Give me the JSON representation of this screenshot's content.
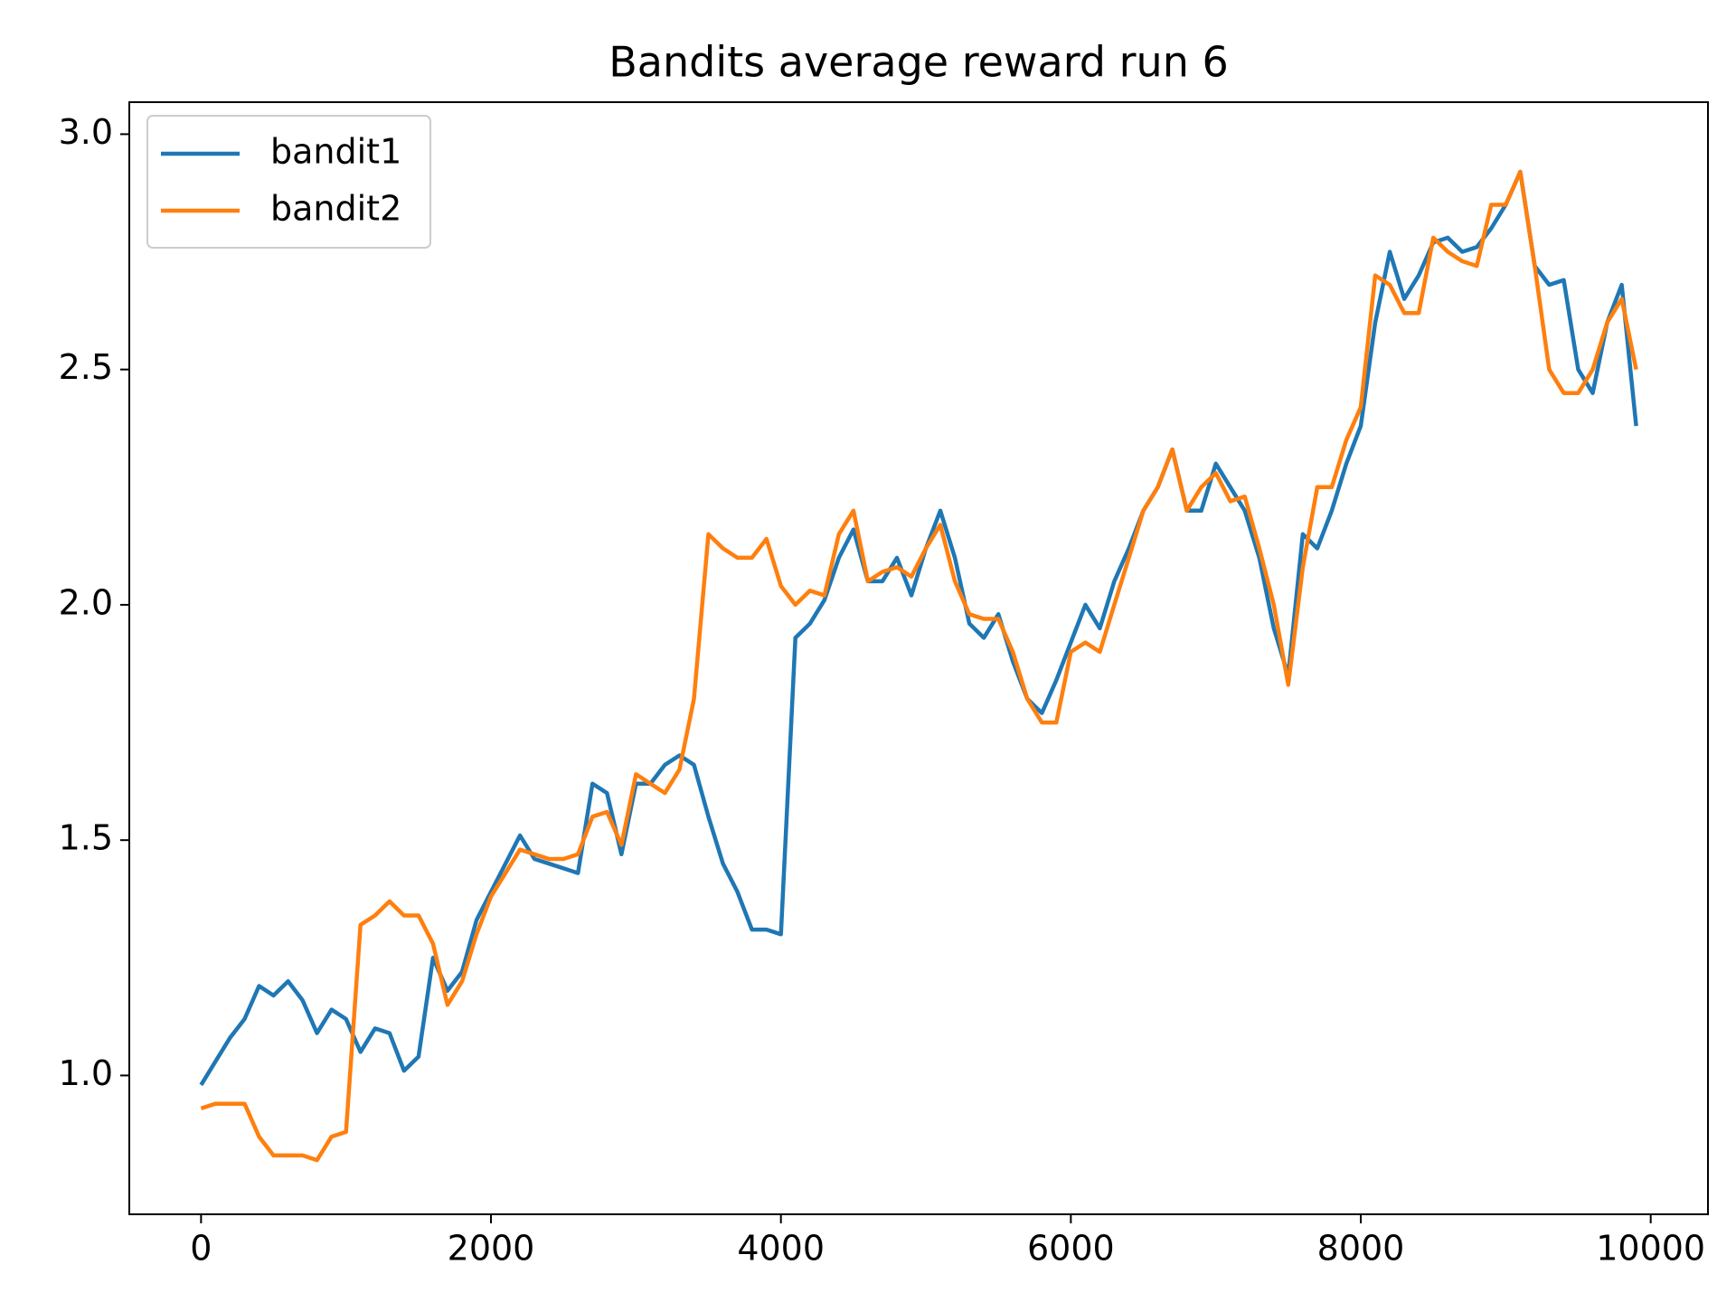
{
  "chart_data": {
    "type": "line",
    "title": "Bandits average reward run 6",
    "x": [
      0,
      100,
      200,
      300,
      400,
      500,
      600,
      700,
      800,
      900,
      1000,
      1100,
      1200,
      1300,
      1400,
      1500,
      1600,
      1700,
      1800,
      1900,
      2000,
      2100,
      2200,
      2300,
      2400,
      2500,
      2600,
      2700,
      2800,
      2900,
      3000,
      3100,
      3200,
      3300,
      3400,
      3500,
      3600,
      3700,
      3800,
      3900,
      4000,
      4100,
      4200,
      4300,
      4400,
      4500,
      4600,
      4700,
      4800,
      4900,
      5000,
      5100,
      5200,
      5300,
      5400,
      5500,
      5600,
      5700,
      5800,
      5900,
      6000,
      6100,
      6200,
      6300,
      6400,
      6500,
      6600,
      6700,
      6800,
      6900,
      7000,
      7100,
      7200,
      7300,
      7400,
      7500,
      7600,
      7700,
      7800,
      7900,
      8000,
      8100,
      8200,
      8300,
      8400,
      8500,
      8600,
      8700,
      8800,
      8900,
      9000,
      9100,
      9200,
      9300,
      9400,
      9500,
      9600,
      9700,
      9800,
      9900
    ],
    "series": [
      {
        "name": "bandit1",
        "color": "#1f77b4",
        "values": [
          0.98,
          1.03,
          1.08,
          1.12,
          1.19,
          1.17,
          1.2,
          1.16,
          1.09,
          1.14,
          1.12,
          1.05,
          1.1,
          1.09,
          1.01,
          1.04,
          1.25,
          1.18,
          1.22,
          1.33,
          1.39,
          1.45,
          1.51,
          1.46,
          1.45,
          1.44,
          1.43,
          1.62,
          1.6,
          1.47,
          1.62,
          1.62,
          1.66,
          1.68,
          1.66,
          1.55,
          1.45,
          1.39,
          1.31,
          1.31,
          1.3,
          1.93,
          1.96,
          2.01,
          2.1,
          2.16,
          2.05,
          2.05,
          2.1,
          2.02,
          2.12,
          2.2,
          2.1,
          1.96,
          1.93,
          1.98,
          1.88,
          1.8,
          1.77,
          1.84,
          1.92,
          2.0,
          1.95,
          2.05,
          2.12,
          2.2,
          2.25,
          2.33,
          2.2,
          2.2,
          2.3,
          2.25,
          2.2,
          2.1,
          1.95,
          1.85,
          2.15,
          2.12,
          2.2,
          2.3,
          2.38,
          2.6,
          2.75,
          2.65,
          2.7,
          2.77,
          2.78,
          2.75,
          2.76,
          2.8,
          2.85,
          2.92,
          2.72,
          2.68,
          2.69,
          2.5,
          2.45,
          2.6,
          2.68,
          2.38
        ]
      },
      {
        "name": "bandit2",
        "color": "#ff7f0e",
        "values": [
          0.93,
          0.94,
          0.94,
          0.94,
          0.87,
          0.83,
          0.83,
          0.83,
          0.82,
          0.87,
          0.88,
          1.32,
          1.34,
          1.37,
          1.34,
          1.34,
          1.28,
          1.15,
          1.2,
          1.3,
          1.38,
          1.43,
          1.48,
          1.47,
          1.46,
          1.46,
          1.47,
          1.55,
          1.56,
          1.49,
          1.64,
          1.62,
          1.6,
          1.65,
          1.8,
          2.15,
          2.12,
          2.1,
          2.1,
          2.14,
          2.04,
          2.0,
          2.03,
          2.02,
          2.15,
          2.2,
          2.05,
          2.07,
          2.08,
          2.06,
          2.12,
          2.17,
          2.05,
          1.98,
          1.97,
          1.97,
          1.9,
          1.8,
          1.75,
          1.75,
          1.9,
          1.92,
          1.9,
          2.0,
          2.1,
          2.2,
          2.25,
          2.33,
          2.2,
          2.25,
          2.28,
          2.22,
          2.23,
          2.12,
          2.0,
          1.83,
          2.08,
          2.25,
          2.25,
          2.35,
          2.42,
          2.7,
          2.68,
          2.62,
          2.62,
          2.78,
          2.75,
          2.73,
          2.72,
          2.85,
          2.85,
          2.92,
          2.72,
          2.5,
          2.45,
          2.45,
          2.5,
          2.6,
          2.65,
          2.5
        ]
      }
    ],
    "xlim": [
      -495,
      10395
    ],
    "ylim": [
      0.705,
      3.068
    ],
    "xticks": [
      0,
      2000,
      4000,
      6000,
      8000,
      10000
    ],
    "yticks": [
      {
        "value": 1,
        "label": "1.0"
      },
      1.5,
      {
        "value": 2,
        "label": "2.0"
      },
      2.5,
      {
        "value": 3,
        "label": "3.0"
      }
    ],
    "legend": "upper left"
  }
}
